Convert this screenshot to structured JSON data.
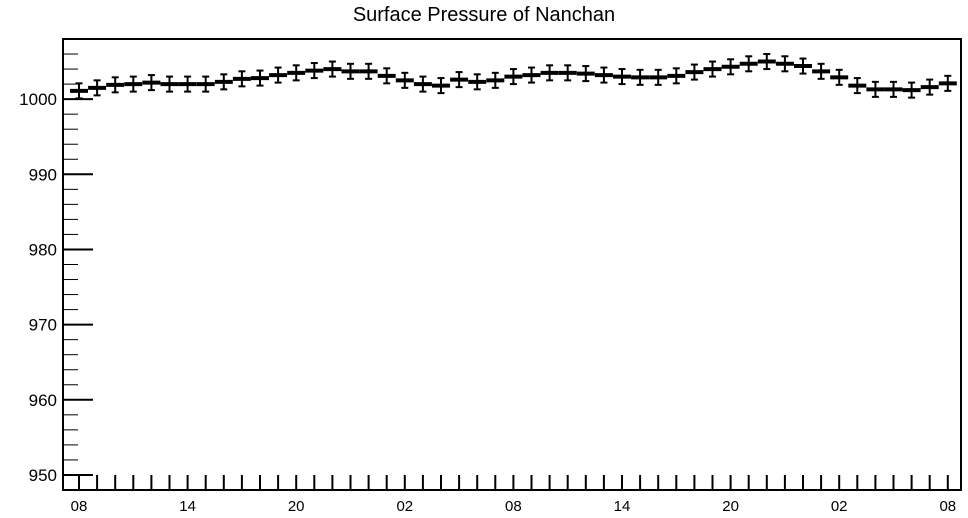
{
  "chart_data": {
    "type": "scatter",
    "title": "Surface Pressure of Nanchan",
    "xlabel": "",
    "ylabel": "",
    "ylim": [
      948,
      1008
    ],
    "xlim": [
      0,
      49
    ],
    "yticks": [
      950,
      960,
      970,
      980,
      990,
      1000
    ],
    "xticks": [
      {
        "x": 0,
        "label": "08"
      },
      {
        "x": 6,
        "label": "14"
      },
      {
        "x": 12,
        "label": "20"
      },
      {
        "x": 18,
        "label": "02"
      },
      {
        "x": 24,
        "label": "08"
      },
      {
        "x": 30,
        "label": "14"
      },
      {
        "x": 36,
        "label": "20"
      },
      {
        "x": 42,
        "label": "02"
      },
      {
        "x": 48,
        "label": "08"
      }
    ],
    "error_bar": 1.0,
    "grid": false,
    "legend": "none",
    "series": [
      {
        "color": "#000000",
        "x": [
          0,
          1,
          2,
          3,
          4,
          5,
          6,
          7,
          8,
          9,
          10,
          11,
          12,
          13,
          14,
          15,
          16,
          17,
          18,
          19,
          20,
          21,
          22,
          23,
          24,
          25,
          26,
          27,
          28,
          29,
          30,
          31,
          32,
          33,
          34,
          35,
          36,
          37,
          38,
          39,
          40,
          41,
          42,
          43,
          44,
          45,
          46,
          47,
          48
        ],
        "values": [
          1001.1,
          1001.5,
          1001.9,
          1002.0,
          1002.2,
          1002.0,
          1002.0,
          1002.0,
          1002.3,
          1002.7,
          1002.8,
          1003.2,
          1003.5,
          1003.8,
          1004.0,
          1003.7,
          1003.7,
          1003.1,
          1002.5,
          1002.0,
          1001.8,
          1002.6,
          1002.3,
          1002.5,
          1003.0,
          1003.2,
          1003.5,
          1003.5,
          1003.4,
          1003.2,
          1003.0,
          1002.9,
          1002.9,
          1003.1,
          1003.6,
          1004.0,
          1004.3,
          1004.7,
          1005.0,
          1004.7,
          1004.4,
          1003.7,
          1002.9,
          1001.8,
          1001.3,
          1001.3,
          1001.2,
          1001.6,
          1002.1
        ]
      }
    ]
  }
}
